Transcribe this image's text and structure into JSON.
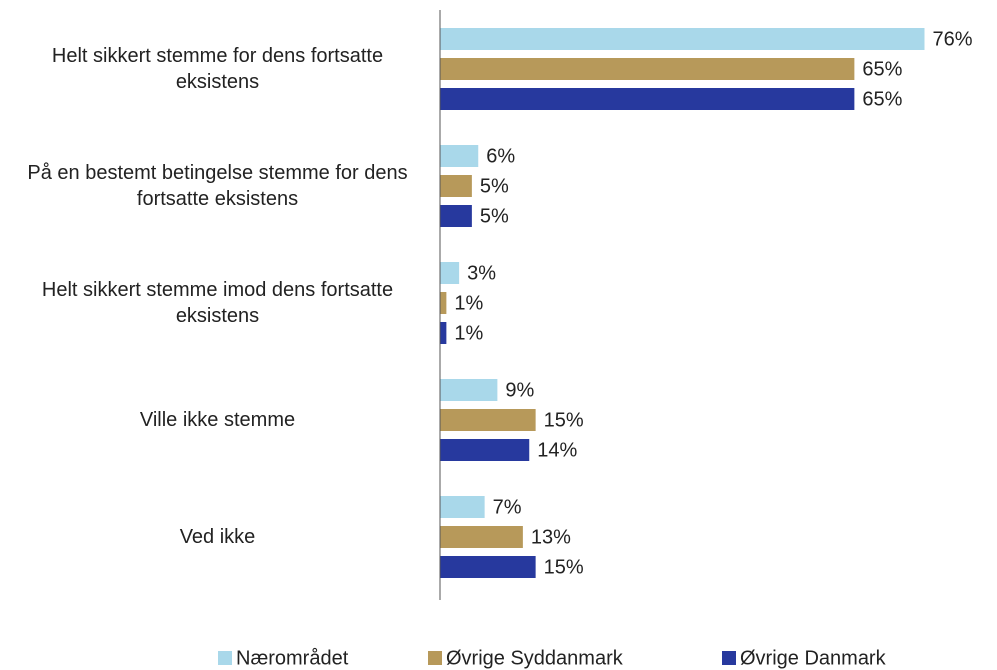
{
  "chart_data": {
    "type": "bar",
    "orientation": "horizontal",
    "categories": [
      "Helt sikkert stemme for dens fortsatte eksistens",
      "På en bestemt betingelse stemme for dens fortsatte eksistens",
      "Helt sikkert stemme imod dens fortsatte eksistens",
      "Ville ikke stemme",
      "Ved ikke"
    ],
    "series": [
      {
        "name": "Nærområdet",
        "color": "#a9d8ea",
        "values": [
          76,
          6,
          3,
          9,
          7
        ],
        "value_labels": [
          "76%",
          "6%",
          "3%",
          "9%",
          "7%"
        ]
      },
      {
        "name": "Øvrige Syddanmark",
        "color": "#b7995a",
        "values": [
          65,
          5,
          1,
          15,
          13
        ],
        "value_labels": [
          "65%",
          "5%",
          "1%",
          "15%",
          "13%"
        ]
      },
      {
        "name": "Øvrige Danmark",
        "color": "#27399e",
        "values": [
          65,
          5,
          1,
          14,
          15
        ],
        "value_labels": [
          "65%",
          "5%",
          "1%",
          "14%",
          "15%"
        ]
      }
    ],
    "xlim": [
      0,
      80
    ],
    "legend": "bottom"
  }
}
